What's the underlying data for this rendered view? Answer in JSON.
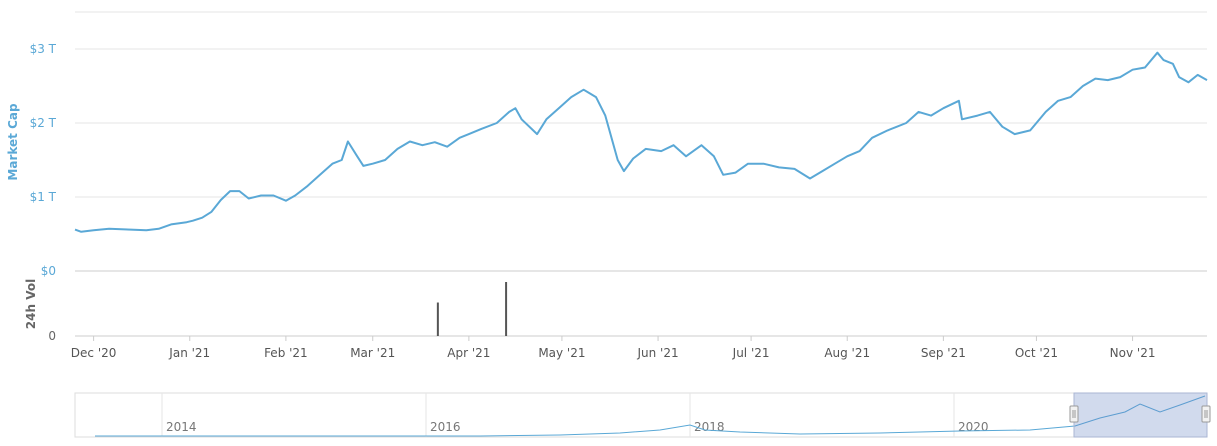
{
  "chart_data": {
    "type": "line",
    "ylabel": "Market Cap",
    "yticks": [
      "$0",
      "$1 T",
      "$2 T",
      "$3 T"
    ],
    "ylim": [
      0,
      3.5
    ],
    "x_ticks": [
      "Dec '20",
      "Jan '21",
      "Feb '21",
      "Mar '21",
      "Apr '21",
      "May '21",
      "Jun '21",
      "Jul '21",
      "Aug '21",
      "Sep '21",
      "Oct '21",
      "Nov '21"
    ],
    "x_range": [
      "2020-11-25",
      "2021-11-25"
    ],
    "series": [
      {
        "values_unit": "trillion USD",
        "color": "#5aa8d6",
        "points": [
          [
            "2020-11-25",
            0.56
          ],
          [
            "2020-11-27",
            0.53
          ],
          [
            "2020-12-01",
            0.55
          ],
          [
            "2020-12-06",
            0.57
          ],
          [
            "2020-12-13",
            0.56
          ],
          [
            "2020-12-18",
            0.55
          ],
          [
            "2020-12-22",
            0.57
          ],
          [
            "2020-12-26",
            0.63
          ],
          [
            "2020-12-31",
            0.66
          ],
          [
            "2021-01-02",
            0.68
          ],
          [
            "2021-01-05",
            0.72
          ],
          [
            "2021-01-08",
            0.8
          ],
          [
            "2021-01-11",
            0.96
          ],
          [
            "2021-01-14",
            1.08
          ],
          [
            "2021-01-17",
            1.08
          ],
          [
            "2021-01-20",
            0.98
          ],
          [
            "2021-01-24",
            1.02
          ],
          [
            "2021-01-28",
            1.02
          ],
          [
            "2021-02-01",
            0.95
          ],
          [
            "2021-02-04",
            1.02
          ],
          [
            "2021-02-08",
            1.15
          ],
          [
            "2021-02-12",
            1.3
          ],
          [
            "2021-02-16",
            1.45
          ],
          [
            "2021-02-19",
            1.5
          ],
          [
            "2021-02-21",
            1.75
          ],
          [
            "2021-02-24",
            1.55
          ],
          [
            "2021-02-26",
            1.42
          ],
          [
            "2021-03-01",
            1.45
          ],
          [
            "2021-03-05",
            1.5
          ],
          [
            "2021-03-09",
            1.65
          ],
          [
            "2021-03-13",
            1.75
          ],
          [
            "2021-03-17",
            1.7
          ],
          [
            "2021-03-21",
            1.74
          ],
          [
            "2021-03-25",
            1.68
          ],
          [
            "2021-03-29",
            1.8
          ],
          [
            "2021-04-01",
            1.85
          ],
          [
            "2021-04-05",
            1.92
          ],
          [
            "2021-04-10",
            2.0
          ],
          [
            "2021-04-14",
            2.15
          ],
          [
            "2021-04-16",
            2.2
          ],
          [
            "2021-04-18",
            2.05
          ],
          [
            "2021-04-23",
            1.85
          ],
          [
            "2021-04-26",
            2.05
          ],
          [
            "2021-04-30",
            2.2
          ],
          [
            "2021-05-04",
            2.35
          ],
          [
            "2021-05-08",
            2.45
          ],
          [
            "2021-05-10",
            2.4
          ],
          [
            "2021-05-12",
            2.35
          ],
          [
            "2021-05-15",
            2.1
          ],
          [
            "2021-05-19",
            1.5
          ],
          [
            "2021-05-21",
            1.35
          ],
          [
            "2021-05-24",
            1.52
          ],
          [
            "2021-05-28",
            1.65
          ],
          [
            "2021-06-02",
            1.62
          ],
          [
            "2021-06-06",
            1.7
          ],
          [
            "2021-06-10",
            1.55
          ],
          [
            "2021-06-15",
            1.7
          ],
          [
            "2021-06-19",
            1.55
          ],
          [
            "2021-06-22",
            1.3
          ],
          [
            "2021-06-26",
            1.33
          ],
          [
            "2021-06-30",
            1.45
          ],
          [
            "2021-07-05",
            1.45
          ],
          [
            "2021-07-10",
            1.4
          ],
          [
            "2021-07-15",
            1.38
          ],
          [
            "2021-07-20",
            1.25
          ],
          [
            "2021-07-24",
            1.35
          ],
          [
            "2021-07-28",
            1.45
          ],
          [
            "2021-08-01",
            1.55
          ],
          [
            "2021-08-05",
            1.62
          ],
          [
            "2021-08-09",
            1.8
          ],
          [
            "2021-08-14",
            1.9
          ],
          [
            "2021-08-20",
            2.0
          ],
          [
            "2021-08-24",
            2.15
          ],
          [
            "2021-08-28",
            2.1
          ],
          [
            "2021-09-01",
            2.2
          ],
          [
            "2021-09-06",
            2.3
          ],
          [
            "2021-09-07",
            2.05
          ],
          [
            "2021-09-12",
            2.1
          ],
          [
            "2021-09-16",
            2.15
          ],
          [
            "2021-09-20",
            1.95
          ],
          [
            "2021-09-24",
            1.85
          ],
          [
            "2021-09-29",
            1.9
          ],
          [
            "2021-10-04",
            2.15
          ],
          [
            "2021-10-08",
            2.3
          ],
          [
            "2021-10-12",
            2.35
          ],
          [
            "2021-10-16",
            2.5
          ],
          [
            "2021-10-20",
            2.6
          ],
          [
            "2021-10-24",
            2.58
          ],
          [
            "2021-10-28",
            2.62
          ],
          [
            "2021-11-01",
            2.72
          ],
          [
            "2021-11-05",
            2.75
          ],
          [
            "2021-11-09",
            2.95
          ],
          [
            "2021-11-11",
            2.85
          ],
          [
            "2021-11-14",
            2.8
          ],
          [
            "2021-11-16",
            2.62
          ],
          [
            "2021-11-19",
            2.55
          ],
          [
            "2021-11-22",
            2.65
          ],
          [
            "2021-11-25",
            2.58
          ]
        ]
      }
    ],
    "volume": {
      "ylabel": "24h Vol",
      "yticks": [
        "0"
      ],
      "color": "#555555",
      "note_scale": "relative to largest bar",
      "bars": [
        [
          "2021-03-22",
          0.62
        ],
        [
          "2021-04-13",
          1.0
        ]
      ]
    },
    "navigator": {
      "year_labels": [
        "2014",
        "2016",
        "2018",
        "2020"
      ],
      "selection": [
        "2020-11-25",
        "2021-11-25"
      ]
    }
  }
}
